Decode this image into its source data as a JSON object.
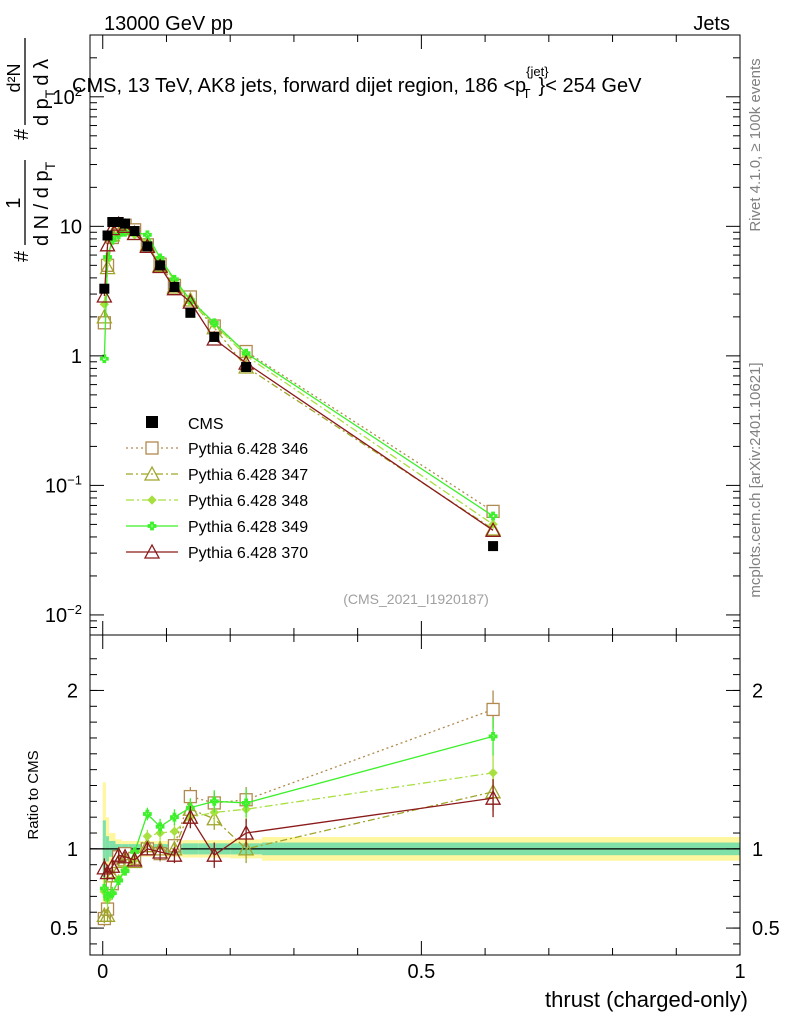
{
  "header": {
    "left": "13000 GeV pp",
    "right": "Jets",
    "title_main": "CMS, 13 TeV, AK8 jets, forward dijet region, 186 <p",
    "title_sup": "{jet}",
    "title_sub": "T",
    "title_end": "}< 254 GeV",
    "side_rivet": "Rivet 4.1.0, ≥ 100k events",
    "side_mcplots": "mcplots.cern.ch [arXiv:2401.10621]",
    "analysis_tag": "(CMS_2021_I1920187)"
  },
  "ylabel": {
    "hash1": "#",
    "frac1_num": "1",
    "frac1_den": "d N / d p",
    "frac1_den_sub": "T",
    "hash2": "#",
    "frac2_num": "d²N",
    "frac2_den": "d p",
    "frac2_den_sub": "T",
    "frac2_den_end": "d λ"
  },
  "ratio_ylabel": "Ratio to CMS",
  "xlabel": "thrust (charged-only)",
  "colors": {
    "cms": "#000000",
    "p346": "#b08a4e",
    "p347": "#a0a52a",
    "p348": "#a8e040",
    "p349": "#3cf02a",
    "p370": "#8b1a1a",
    "band_inner": "#7fe0a8",
    "band_outer": "#fff6a0"
  },
  "chart_data": {
    "type": "line",
    "x_range": [
      -0.02,
      1.0
    ],
    "main": {
      "yscale": "log",
      "ylim": [
        0.007,
        300
      ],
      "yticks": [
        {
          "v": 0.01,
          "base": "10",
          "exp": "−2"
        },
        {
          "v": 0.1,
          "base": "10",
          "exp": "−1"
        },
        {
          "v": 1,
          "label": "1"
        },
        {
          "v": 10,
          "label": "10"
        },
        {
          "v": 100,
          "base": "10",
          "exp": "2"
        }
      ]
    },
    "ratio": {
      "ylim": [
        0.33,
        2.35
      ],
      "yticks": [
        0.5,
        1,
        2
      ],
      "ytick_labels": [
        "0.5",
        "1",
        "2"
      ]
    },
    "xticks": [
      0,
      0.5,
      1
    ],
    "xtick_labels": [
      "0",
      "0.5",
      "1"
    ],
    "bins": [
      0.0,
      0.005,
      0.01,
      0.02,
      0.03,
      0.04,
      0.06,
      0.08,
      0.1,
      0.125,
      0.15,
      0.2,
      0.25,
      1.0
    ],
    "cms": {
      "name": "CMS",
      "x": [
        0.0025,
        0.0075,
        0.015,
        0.025,
        0.035,
        0.05,
        0.07,
        0.09,
        0.1125,
        0.1375,
        0.175,
        0.225,
        0.6125
      ],
      "y": [
        3.3,
        8.5,
        10.8,
        10.8,
        10.5,
        9.2,
        7.0,
        5.0,
        3.4,
        2.15,
        1.4,
        0.82,
        0.034
      ]
    },
    "series": [
      {
        "name": "Pythia 6.428 346",
        "key": "p346",
        "marker": "square",
        "dash": "2,3",
        "x": [
          0.0025,
          0.0075,
          0.015,
          0.025,
          0.035,
          0.05,
          0.07,
          0.09,
          0.1125,
          0.1375,
          0.175,
          0.225,
          0.6125
        ],
        "y": [
          1.8,
          5.0,
          8.2,
          10.0,
          10.2,
          9.4,
          7.2,
          5.1,
          3.5,
          2.85,
          1.7,
          1.08,
          0.063
        ],
        "ratio": [
          0.56,
          0.62,
          0.78,
          0.95,
          0.97,
          0.94,
          1.0,
          0.97,
          1.02,
          1.33,
          1.29,
          1.31,
          1.88
        ],
        "ratio_err": [
          0.05,
          0.04,
          0.04,
          0.03,
          0.03,
          0.03,
          0.04,
          0.05,
          0.05,
          0.06,
          0.07,
          0.08,
          0.12
        ]
      },
      {
        "name": "Pythia 6.428 347",
        "key": "p347",
        "marker": "triangle",
        "dash": "7,3,2,3",
        "x": [
          0.0025,
          0.0075,
          0.015,
          0.025,
          0.035,
          0.05,
          0.07,
          0.09,
          0.1125,
          0.1375,
          0.175,
          0.225,
          0.6125
        ],
        "y": [
          2.0,
          4.8,
          8.6,
          9.8,
          9.6,
          8.8,
          7.2,
          5.0,
          3.4,
          2.7,
          1.65,
          0.82,
          0.046
        ],
        "ratio": [
          0.58,
          0.58,
          0.83,
          0.92,
          0.93,
          0.92,
          1.02,
          1.0,
          1.0,
          1.25,
          1.19,
          1.0,
          1.36
        ],
        "ratio_err": [
          0.05,
          0.04,
          0.04,
          0.03,
          0.03,
          0.03,
          0.04,
          0.05,
          0.05,
          0.06,
          0.07,
          0.09,
          0.12
        ]
      },
      {
        "name": "Pythia 6.428 348",
        "key": "p348",
        "marker": "diamond",
        "dash": "8,3,2,3",
        "x": [
          0.0025,
          0.0075,
          0.015,
          0.025,
          0.035,
          0.05,
          0.07,
          0.09,
          0.1125,
          0.1375,
          0.175,
          0.225,
          0.6125
        ],
        "y": [
          2.5,
          5.5,
          8.0,
          8.8,
          9.2,
          8.6,
          7.6,
          5.5,
          3.8,
          2.6,
          1.75,
          1.0,
          0.05
        ],
        "ratio": [
          0.73,
          0.68,
          0.72,
          0.81,
          0.87,
          0.93,
          1.08,
          1.1,
          1.11,
          1.2,
          1.23,
          1.25,
          1.48
        ],
        "ratio_err": [
          0.06,
          0.05,
          0.04,
          0.03,
          0.03,
          0.03,
          0.04,
          0.05,
          0.05,
          0.06,
          0.07,
          0.09,
          0.12
        ]
      },
      {
        "name": "Pythia 6.428 349",
        "key": "p349",
        "marker": "cross",
        "dash": "",
        "x": [
          0.0025,
          0.0075,
          0.015,
          0.025,
          0.035,
          0.05,
          0.07,
          0.09,
          0.1125,
          0.1375,
          0.175,
          0.225,
          0.6125
        ],
        "y": [
          0.95,
          5.8,
          7.8,
          8.6,
          9.0,
          9.0,
          8.6,
          5.7,
          3.9,
          2.7,
          1.8,
          1.05,
          0.058
        ],
        "ratio": [
          0.75,
          0.7,
          0.72,
          0.8,
          0.86,
          0.98,
          1.22,
          1.14,
          1.2,
          1.26,
          1.3,
          1.29,
          1.71
        ],
        "ratio_err": [
          0.08,
          0.05,
          0.04,
          0.03,
          0.03,
          0.03,
          0.04,
          0.05,
          0.05,
          0.06,
          0.07,
          0.09,
          0.12
        ]
      },
      {
        "name": "Pythia 6.428 370",
        "key": "p370",
        "marker": "triangle",
        "dash": "",
        "x": [
          0.0025,
          0.0075,
          0.015,
          0.025,
          0.035,
          0.05,
          0.07,
          0.09,
          0.1125,
          0.1375,
          0.175,
          0.225,
          0.6125
        ],
        "y": [
          2.9,
          7.2,
          9.6,
          10.4,
          10.0,
          8.8,
          7.0,
          4.9,
          3.3,
          2.6,
          1.35,
          0.88,
          0.045
        ],
        "ratio": [
          0.88,
          0.85,
          0.89,
          0.96,
          0.95,
          0.93,
          1.0,
          0.98,
          0.96,
          1.2,
          0.96,
          1.1,
          1.32
        ],
        "ratio_err": [
          0.06,
          0.05,
          0.04,
          0.03,
          0.03,
          0.03,
          0.04,
          0.05,
          0.05,
          0.07,
          0.08,
          0.09,
          0.12
        ]
      }
    ],
    "band": {
      "x_edges": [
        0.0,
        0.005,
        0.01,
        0.02,
        0.03,
        0.04,
        0.06,
        0.08,
        0.1,
        0.125,
        0.15,
        0.2,
        0.25,
        1.0
      ],
      "inner": [
        0.18,
        0.08,
        0.05,
        0.03,
        0.03,
        0.03,
        0.03,
        0.03,
        0.03,
        0.035,
        0.035,
        0.035,
        0.04
      ],
      "outer": [
        0.42,
        0.2,
        0.1,
        0.06,
        0.05,
        0.05,
        0.05,
        0.05,
        0.05,
        0.055,
        0.055,
        0.06,
        0.075
      ]
    }
  }
}
